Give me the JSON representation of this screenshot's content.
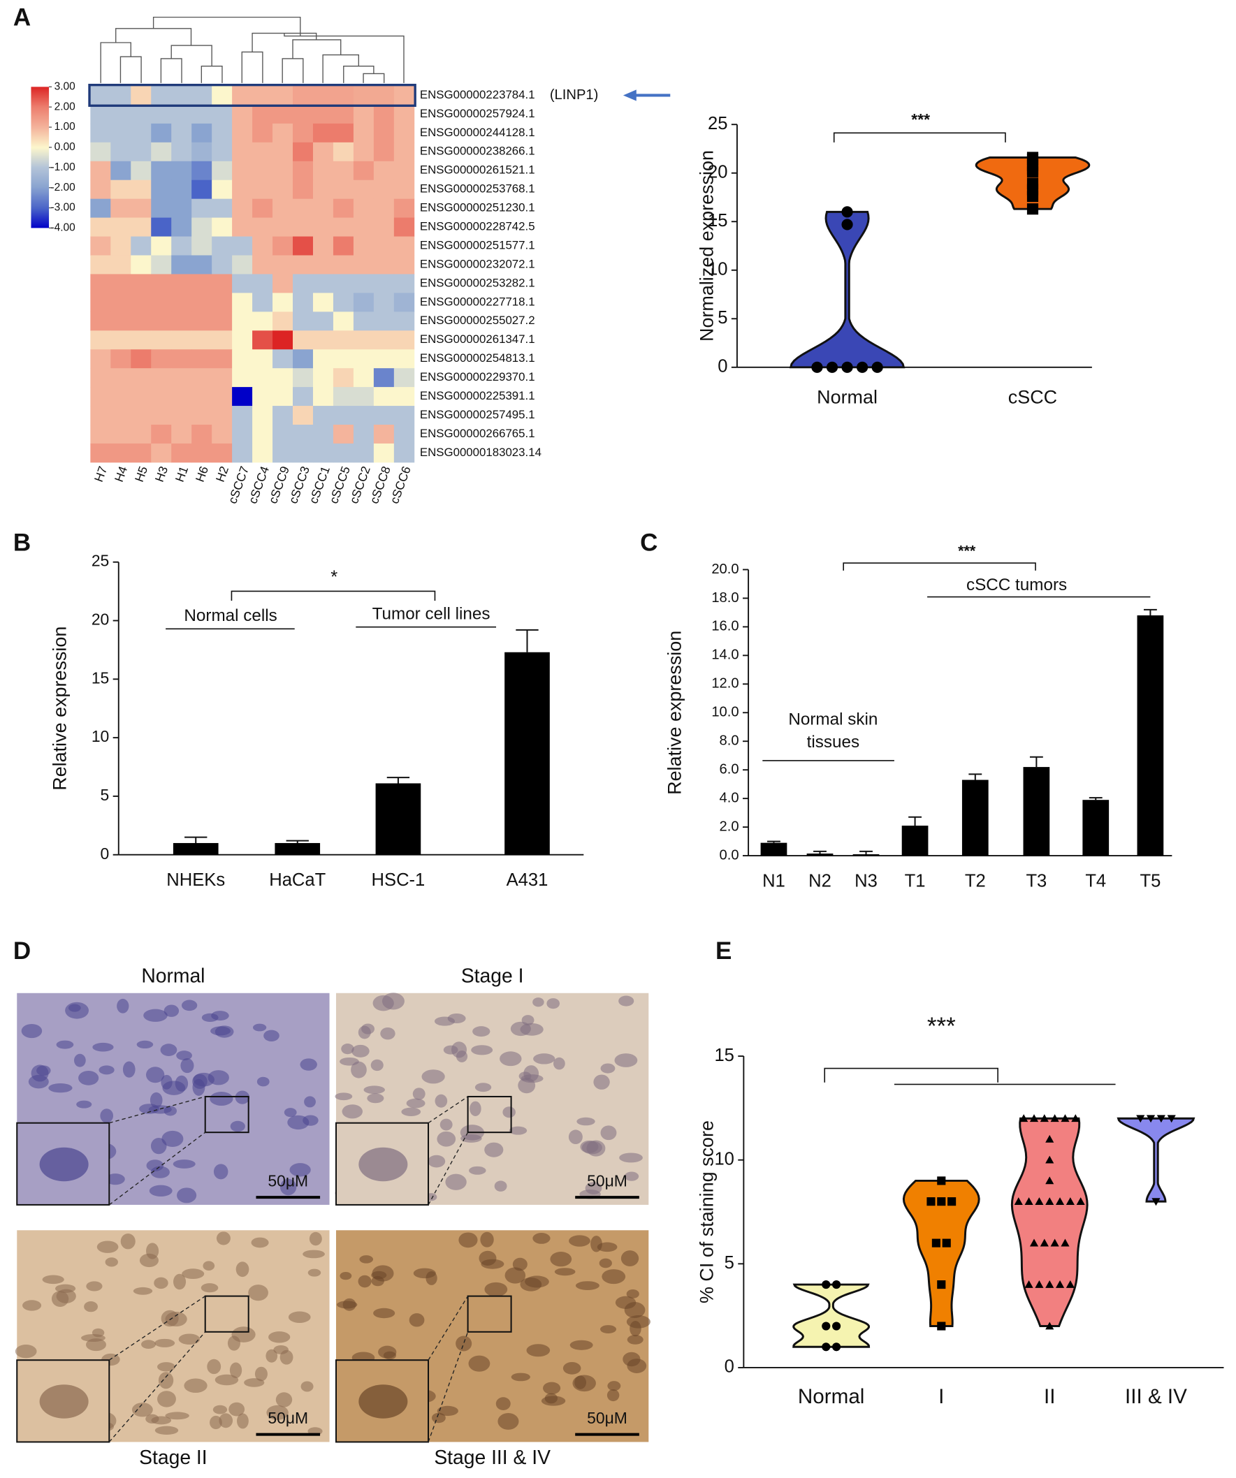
{
  "panel_labels": [
    "A",
    "B",
    "C",
    "D",
    "E"
  ],
  "chart_data": [
    {
      "type": "heatmap",
      "rows": [
        "ENSG00000223784.1",
        "ENSG00000257924.1",
        "ENSG00000244128.1",
        "ENSG00000238266.1",
        "ENSG00000261521.1",
        "ENSG00000253768.1",
        "ENSG00000251230.1",
        "ENSG00000228742.5",
        "ENSG00000251577.1",
        "ENSG00000232072.1",
        "ENSG00000253282.1",
        "ENSG00000227718.1",
        "ENSG00000255027.2",
        "ENSG00000261347.1",
        "ENSG00000254813.1",
        "ENSG00000229370.1",
        "ENSG00000225391.1",
        "ENSG00000257495.1",
        "ENSG00000266765.1",
        "ENSG00000183023.14"
      ],
      "columns": [
        "H7",
        "H4",
        "H5",
        "H3",
        "H1",
        "H6",
        "H2",
        "cSCC7",
        "cSCC4",
        "cSCC9",
        "cSCC3",
        "cSCC1",
        "cSCC5",
        "cSCC2",
        "cSCC8",
        "cSCC6"
      ],
      "values": [
        [
          -1,
          -1,
          0.5,
          -1,
          -1,
          -1,
          0,
          1,
          1,
          1,
          1.3,
          1.3,
          1.3,
          1.2,
          1.2,
          1
        ],
        [
          -1,
          -1,
          -1,
          -1,
          -1,
          -1,
          -1,
          1,
          1.5,
          1.5,
          1.5,
          1.5,
          1.5,
          1,
          1.5,
          1
        ],
        [
          -1,
          -1,
          -1,
          -2,
          -1,
          -2,
          -1,
          1,
          1.5,
          1,
          1.5,
          2,
          2,
          1,
          1.5,
          1
        ],
        [
          -0.5,
          -1,
          -1,
          -0.5,
          -1,
          -1.5,
          -1,
          1,
          1,
          1,
          2,
          1,
          0.5,
          1,
          1.5,
          1
        ],
        [
          1,
          -2,
          -0.5,
          -2,
          -2,
          -2.5,
          -0.5,
          1,
          1,
          1,
          1.5,
          1,
          1,
          1.5,
          1,
          1
        ],
        [
          1,
          0.5,
          0.5,
          -2,
          -2,
          -3,
          0,
          1,
          1,
          1,
          1.5,
          1,
          1,
          1,
          1,
          1
        ],
        [
          -2,
          1,
          1,
          -2,
          -2,
          -1,
          -1,
          1,
          1.5,
          1,
          1,
          1,
          1.5,
          1,
          1,
          1.5
        ],
        [
          0.5,
          0.5,
          0.5,
          -3,
          -2,
          -0.5,
          0,
          1,
          1,
          1,
          1,
          1,
          1,
          1,
          1,
          2
        ],
        [
          1,
          0.5,
          -1,
          0,
          -1,
          -0.5,
          -1,
          -1,
          1,
          1.5,
          2.5,
          1,
          2,
          1,
          1,
          1
        ],
        [
          0.5,
          0.5,
          0,
          -0.5,
          -2,
          -2,
          -1,
          -0.5,
          1,
          1,
          1,
          1,
          1,
          1,
          1,
          1
        ],
        [
          1.5,
          1.5,
          1.5,
          1.5,
          1.5,
          1.5,
          1.5,
          -1,
          -1,
          1,
          -1,
          -1,
          -1,
          -1,
          -1,
          -1
        ],
        [
          1.5,
          1.5,
          1.5,
          1.5,
          1.5,
          1.5,
          1.5,
          0,
          -1,
          0,
          -1,
          0,
          -1,
          -1.5,
          -1,
          -1.5
        ],
        [
          1.5,
          1.5,
          1.5,
          1.5,
          1.5,
          1.5,
          1.5,
          0,
          0,
          0.5,
          -1,
          -1,
          0,
          -1,
          -1,
          -1
        ],
        [
          0.5,
          0.5,
          0.5,
          0.5,
          0.5,
          0.5,
          0.5,
          0,
          2.5,
          3,
          0.5,
          0.5,
          0.5,
          0.5,
          0.5,
          0.5
        ],
        [
          1,
          1.5,
          2,
          1.5,
          1.5,
          1.5,
          1.5,
          0,
          0,
          -1,
          -2,
          0,
          0,
          0,
          0,
          0
        ],
        [
          1,
          1,
          1,
          1,
          1,
          1,
          1,
          0,
          0,
          0,
          -0.5,
          0,
          0.5,
          0,
          -2.5,
          -0.5
        ],
        [
          1,
          1,
          1,
          1,
          1,
          1,
          1,
          -4,
          0,
          0,
          -1,
          0,
          -0.5,
          -0.5,
          0,
          0
        ],
        [
          1,
          1,
          1,
          1,
          1,
          1,
          1,
          -1,
          0,
          -1,
          0.5,
          -1,
          -1,
          -1,
          -1,
          -1
        ],
        [
          1,
          1,
          1,
          1.5,
          1,
          1.5,
          1,
          -1,
          0,
          -1,
          -1,
          -1,
          1,
          -1,
          1,
          -1
        ],
        [
          1.5,
          1.5,
          1.5,
          1,
          1.5,
          1.5,
          1.5,
          -1,
          0,
          -1,
          -1,
          -1,
          -1,
          -1,
          0,
          -1
        ]
      ],
      "clim": [
        -4,
        3
      ],
      "cticks": [
        {
          "value": 3,
          "label": "3.00"
        },
        {
          "value": 2,
          "label": "2.00"
        },
        {
          "value": 1,
          "label": "1.00"
        },
        {
          "value": 0,
          "label": "0.00"
        },
        {
          "value": -1,
          "label": "-1.00"
        },
        {
          "value": -2,
          "label": "-2.00"
        },
        {
          "value": -3,
          "label": "-3.00"
        },
        {
          "value": -4,
          "label": "-4.00"
        }
      ],
      "highlight_label": "(LINP1)"
    },
    {
      "type": "violin",
      "categories": [
        "Normal",
        "cSCC"
      ],
      "colors": [
        "#3a47b5",
        "#f06a10"
      ],
      "markers": [
        "circle",
        "square"
      ],
      "values": [
        [
          0,
          0,
          0,
          0,
          0,
          14.7,
          16
        ],
        [
          20.1,
          21.6,
          21.4,
          20.4,
          18.9,
          18.3,
          17.6,
          16.3,
          20.8
        ]
      ],
      "ylim": [
        0,
        25
      ],
      "yticks": [
        0,
        5,
        10,
        15,
        20,
        25
      ],
      "ylabel": "Normalized expression",
      "annotations": [
        "***"
      ]
    },
    {
      "type": "bar",
      "categories": [
        "NHEKs",
        "HaCaT",
        "HSC-1",
        "A431"
      ],
      "values": [
        1.0,
        1.0,
        6.1,
        17.3
      ],
      "errors": [
        0.5,
        0.2,
        0.5,
        1.9
      ],
      "color": "#000000",
      "ylim": [
        0,
        25
      ],
      "yticks": [
        0,
        5,
        10,
        15,
        20,
        25
      ],
      "ylabel": "Relative expression",
      "annotations": [
        "*",
        "Normal cells",
        "Tumor cell lines"
      ]
    },
    {
      "type": "bar",
      "categories": [
        "N1",
        "N2",
        "N3",
        "T1",
        "T2",
        "T3",
        "T4",
        "T5"
      ],
      "values": [
        0.9,
        0.15,
        0.1,
        2.1,
        5.3,
        6.2,
        3.9,
        16.8
      ],
      "errors": [
        0.1,
        0.15,
        0.2,
        0.6,
        0.4,
        0.7,
        0.15,
        0.4
      ],
      "color": "#000000",
      "ylim": [
        0,
        20
      ],
      "yticks": [
        {
          "value": 0,
          "label": "0.0"
        },
        {
          "value": 2,
          "label": "2.0"
        },
        {
          "value": 4,
          "label": "4.0"
        },
        {
          "value": 6,
          "label": "6.0"
        },
        {
          "value": 8,
          "label": "8.0"
        },
        {
          "value": 10,
          "label": "10.0"
        },
        {
          "value": 12,
          "label": "12.0"
        },
        {
          "value": 14,
          "label": "14.0"
        },
        {
          "value": 16,
          "label": "16.0"
        },
        {
          "value": 18,
          "label": "18.0"
        },
        {
          "value": 20,
          "label": "20.0"
        }
      ],
      "ylabel": "Relative expression",
      "annotations": [
        "***",
        "cSCC tumors",
        "Normal skin",
        "tissues"
      ]
    },
    {
      "type": "violin",
      "categories": [
        "Normal",
        "I",
        "II",
        "III & IV"
      ],
      "colors": [
        "#f5f3b0",
        "#f08000",
        "#f28080",
        "#8888ee"
      ],
      "markers": [
        "circle",
        "square",
        "triangle",
        "down-triangle"
      ],
      "values": [
        [
          4,
          4,
          2,
          2,
          1,
          1
        ],
        [
          9,
          8,
          8,
          8,
          6,
          6,
          4,
          2
        ],
        [
          12,
          12,
          12,
          12,
          12,
          12,
          11,
          10,
          9,
          8,
          8,
          8,
          8,
          8,
          8,
          8,
          6,
          6,
          6,
          6,
          4,
          4,
          4,
          4,
          4,
          2
        ],
        [
          12,
          12,
          12,
          12,
          8
        ]
      ],
      "ylim": [
        0,
        15
      ],
      "yticks": [
        0,
        5,
        10,
        15
      ],
      "ylabel": "% CI of staining score",
      "annotations": [
        "***"
      ]
    }
  ],
  "images": {
    "titles": [
      "Normal",
      "Stage I",
      "Stage II",
      "Stage III & IV"
    ],
    "scale_bars": [
      "50μM",
      "50μM",
      "50μM",
      "50μM"
    ]
  }
}
